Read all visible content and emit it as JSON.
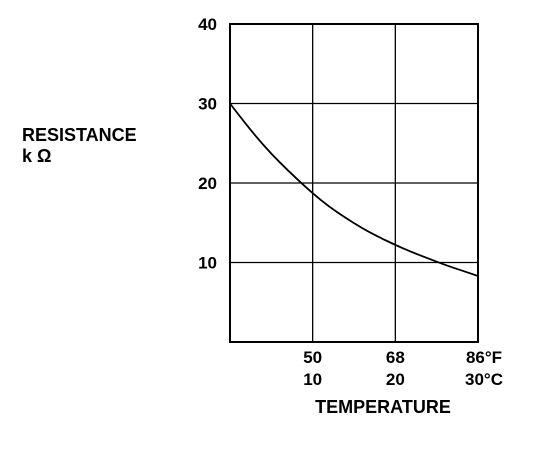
{
  "chart_data": {
    "type": "line",
    "title": "",
    "ylabel": "RESISTANCE",
    "ylabel_unit": "k Ω",
    "xlabel": "TEMPERATURE",
    "xlim_c": [
      0,
      30
    ],
    "ylim": [
      0,
      40
    ],
    "yticks": [
      {
        "value": 40,
        "label": "40"
      },
      {
        "value": 30,
        "label": "30"
      },
      {
        "value": 20,
        "label": "20"
      },
      {
        "value": 10,
        "label": "10"
      }
    ],
    "xticks": [
      {
        "value": 10,
        "label_f": "50",
        "label_c": "10"
      },
      {
        "value": 20,
        "label_f": "68",
        "label_c": "20"
      },
      {
        "value": 30,
        "label_f": "86°F",
        "label_c": "30°C"
      }
    ],
    "grid": true,
    "series": [
      {
        "x": [
          0,
          2,
          4,
          6,
          8,
          10,
          12,
          14,
          16,
          18,
          20,
          22,
          24,
          26,
          28,
          30
        ],
        "y": [
          30.0,
          27.3,
          24.8,
          22.6,
          20.6,
          18.7,
          17.0,
          15.6,
          14.3,
          13.2,
          12.2,
          11.3,
          10.5,
          9.7,
          9.0,
          8.3
        ]
      }
    ],
    "colors": {
      "line": "#000000",
      "grid": "#000000",
      "background": "#ffffff"
    }
  }
}
